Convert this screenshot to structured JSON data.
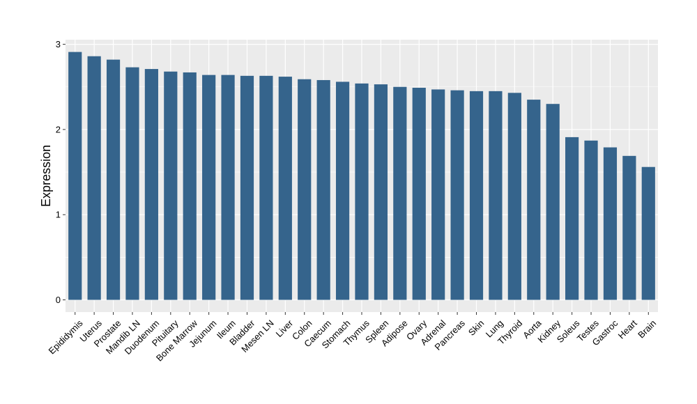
{
  "chart_data": {
    "type": "bar",
    "title": "",
    "xlabel": "",
    "ylabel": "Expression",
    "ylim": [
      0,
      3.06
    ],
    "yticks": [
      0,
      1,
      2,
      3
    ],
    "ytick_labels": [
      "0",
      "1",
      "2",
      "3"
    ],
    "grid": true,
    "legend": "none",
    "bar_color": "#35648c",
    "panel_color": "#ebebeb",
    "gridline_color": "#ffffff",
    "categories": [
      "Epididymis",
      "Uterus",
      "Prostate",
      "Mandib LN",
      "Duodenum",
      "Pituitary",
      "Bone Marrow",
      "Jejunum",
      "Ileum",
      "Bladder",
      "Mesen LN",
      "Liver",
      "Colon",
      "Caecum",
      "Stomach",
      "Thymus",
      "Spleen",
      "Adipose",
      "Ovary",
      "Adrenal",
      "Pancreas",
      "Skin",
      "Lung",
      "Thyroid",
      "Aorta",
      "Kidney",
      "Soleus",
      "Testes",
      "Gastroc",
      "Heart",
      "Brain"
    ],
    "values": [
      2.91,
      2.86,
      2.82,
      2.73,
      2.71,
      2.68,
      2.67,
      2.64,
      2.64,
      2.63,
      2.63,
      2.62,
      2.59,
      2.58,
      2.56,
      2.54,
      2.53,
      2.5,
      2.49,
      2.47,
      2.46,
      2.45,
      2.45,
      2.43,
      2.35,
      2.3,
      1.91,
      1.87,
      1.79,
      1.69,
      1.56
    ]
  }
}
